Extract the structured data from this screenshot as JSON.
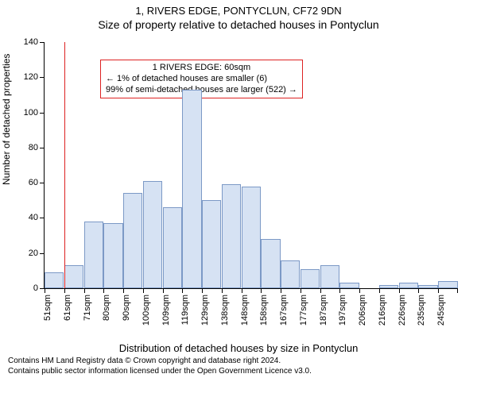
{
  "title_line1": "1, RIVERS EDGE, PONTYCLUN, CF72 9DN",
  "title_line2": "Size of property relative to detached houses in Pontyclun",
  "chart": {
    "type": "histogram",
    "ylabel": "Number of detached properties",
    "xlabel": "Distribution of detached houses by size in Pontyclun",
    "ylim": [
      0,
      140
    ],
    "yticks": [
      0,
      20,
      40,
      60,
      80,
      100,
      120,
      140
    ],
    "xtick_labels": [
      "51sqm",
      "61sqm",
      "71sqm",
      "80sqm",
      "90sqm",
      "100sqm",
      "109sqm",
      "119sqm",
      "129sqm",
      "138sqm",
      "148sqm",
      "158sqm",
      "167sqm",
      "177sqm",
      "187sqm",
      "197sqm",
      "206sqm",
      "216sqm",
      "226sqm",
      "235sqm",
      "245sqm"
    ],
    "bars": [
      9,
      13,
      38,
      37,
      54,
      61,
      46,
      113,
      50,
      59,
      58,
      28,
      16,
      11,
      13,
      3,
      0,
      2,
      3,
      2,
      4
    ],
    "bar_fill": "#d6e2f3",
    "bar_border": "#7c99c6",
    "background_color": "#ffffff",
    "refline_x_index": 1,
    "refline_color": "#d22",
    "annotation": {
      "line1": "1 RIVERS EDGE: 60sqm",
      "line2": "← 1% of detached houses are smaller (6)",
      "line3": "99% of semi-detached houses are larger (522) →",
      "border_color": "#d22"
    }
  },
  "footer": {
    "line1": "Contains HM Land Registry data © Crown copyright and database right 2024.",
    "line2": "Contains public sector information licensed under the Open Government Licence v3.0."
  }
}
